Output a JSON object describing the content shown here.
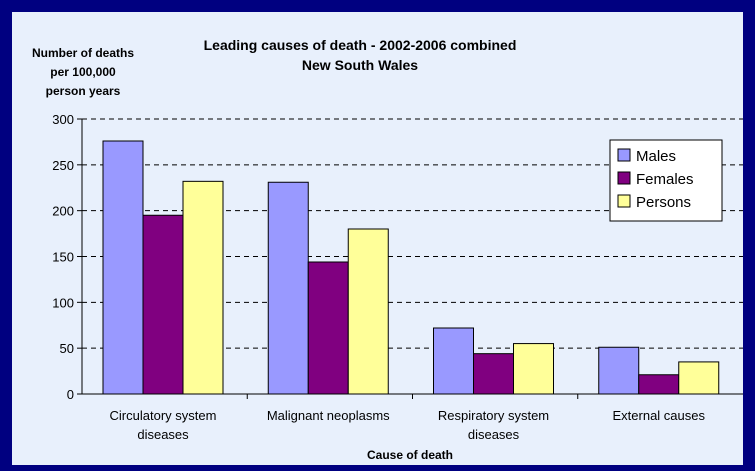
{
  "chart_data": {
    "type": "bar",
    "title": [
      "Leading causes of death - 2002-2006 combined",
      "New South Wales"
    ],
    "ylabel": [
      "Number of deaths",
      "per 100,000",
      "person years"
    ],
    "xlabel": "Cause of death",
    "categories": [
      [
        "Circulatory system",
        "diseases"
      ],
      [
        "Malignant neoplasms"
      ],
      [
        "Respiratory system",
        "diseases"
      ],
      [
        "External causes"
      ]
    ],
    "series": [
      {
        "name": "Males",
        "color": "#9999FF",
        "values": [
          276,
          231,
          72,
          51
        ]
      },
      {
        "name": "Females",
        "color": "#800080",
        "values": [
          195,
          144,
          44,
          21
        ]
      },
      {
        "name": "Persons",
        "color": "#FFFF99",
        "values": [
          232,
          180,
          55,
          35
        ]
      }
    ],
    "ylim": [
      0,
      300
    ],
    "yticks": [
      0,
      50,
      100,
      150,
      200,
      250,
      300
    ],
    "grid": true,
    "legend_position": "top-right"
  }
}
